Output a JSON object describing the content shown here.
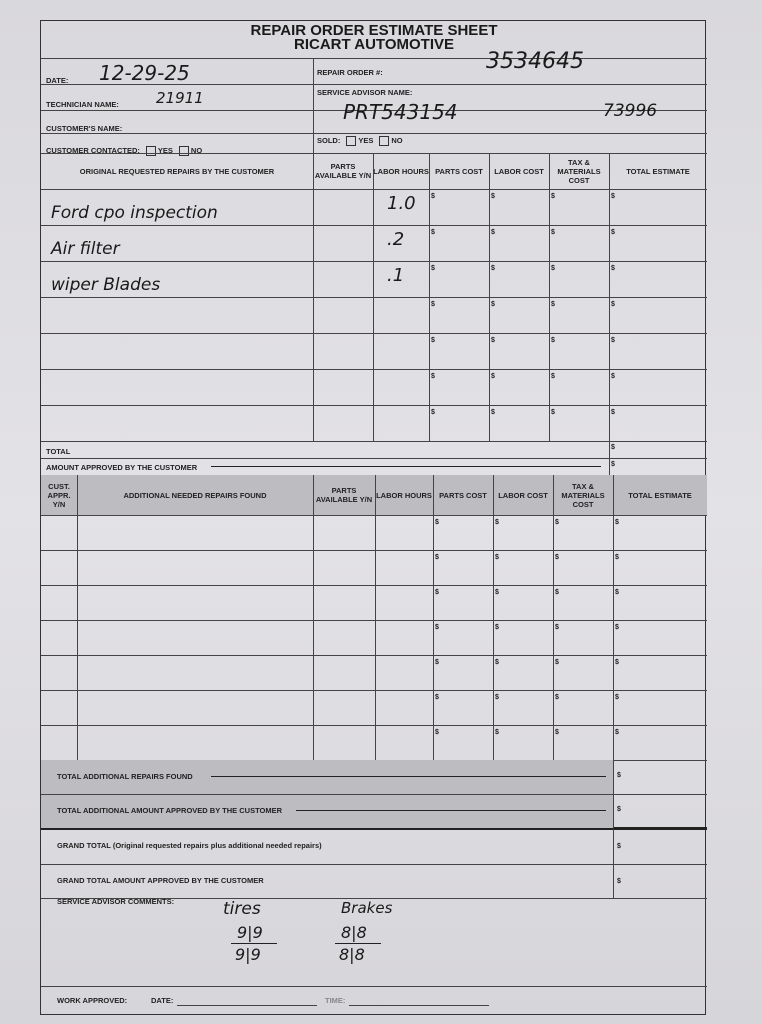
{
  "title": "REPAIR ORDER ESTIMATE SHEET",
  "subtitle": "RICART AUTOMOTIVE",
  "info": {
    "date_label": "DATE:",
    "date_value": "12-29-25",
    "technician_label": "TECHNICIAN NAME:",
    "technician_value": "21911",
    "customer_label": "CUSTOMER'S NAME:",
    "customer_value": "",
    "contacted_label": "CUSTOMER CONTACTED:",
    "yes": "YES",
    "no": "NO",
    "repair_order_label": "REPAIR ORDER #:",
    "repair_order_value": "3534645",
    "advisor_label": "SERVICE ADVISOR NAME:",
    "advisor_value": "PRT543154",
    "advisor_extra": "73996",
    "sold_label": "SOLD:"
  },
  "table1": {
    "headers": [
      "ORIGINAL REQUESTED REPAIRS BY THE CUSTOMER",
      "PARTS AVAILABLE Y/N",
      "LABOR HOURS",
      "PARTS COST",
      "LABOR COST",
      "TAX & MATERIALS COST",
      "TOTAL ESTIMATE"
    ],
    "rows": [
      {
        "desc": "Ford cpo inspection",
        "hours": "1.0"
      },
      {
        "desc": "Air filter",
        "hours": ".2"
      },
      {
        "desc": "wiper Blades",
        "hours": ".1"
      },
      {
        "desc": "",
        "hours": ""
      },
      {
        "desc": "",
        "hours": ""
      },
      {
        "desc": "",
        "hours": ""
      },
      {
        "desc": "",
        "hours": ""
      }
    ],
    "total_label": "TOTAL",
    "approved_label": "AMOUNT APPROVED BY THE CUSTOMER"
  },
  "table2": {
    "headers": [
      "CUST. APPR. Y/N",
      "ADDITIONAL NEEDED REPAIRS FOUND",
      "PARTS AVAILABLE Y/N",
      "LABOR HOURS",
      "PARTS COST",
      "LABOR COST",
      "TAX & MATERIALS COST",
      "TOTAL ESTIMATE"
    ],
    "row_count": 7,
    "total_label": "TOTAL ADDITIONAL REPAIRS FOUND",
    "approved_label": "TOTAL ADDITIONAL AMOUNT APPROVED BY THE CUSTOMER"
  },
  "currency_symbol": "$",
  "grand_total_label": "GRAND TOTAL (Original requested repairs plus additional needed repairs)",
  "grand_approved_label": "GRAND TOTAL AMOUNT APPROVED BY THE CUSTOMER",
  "comments": {
    "label": "SERVICE ADVISOR COMMENTS:",
    "tires_label": "tires",
    "tires_top": "9|9",
    "tires_bottom": "9|9",
    "brakes_label": "Brakes",
    "brakes_top": "8|8",
    "brakes_bottom": "8|8"
  },
  "footer": {
    "work_approved_label": "WORK APPROVED:",
    "date_label": "DATE:",
    "time_label": "TIME:"
  }
}
